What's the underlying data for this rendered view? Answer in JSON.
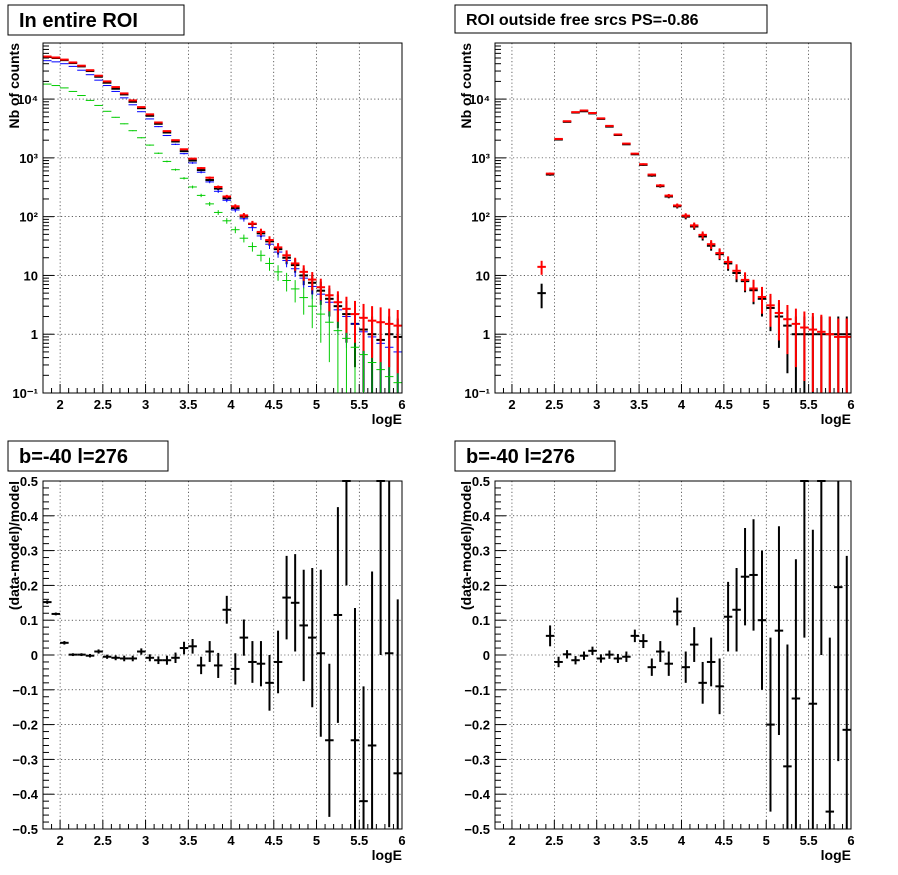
{
  "chart_data": [
    {
      "type": "scatter",
      "panel": "top-left",
      "title": "In entire ROI",
      "xlabel": "logE",
      "ylabel": "Nb of counts",
      "xlim": [
        1.8,
        6.0
      ],
      "ylim": [
        0.1,
        90000
      ],
      "log_y": true,
      "grid": true,
      "bin_width": 0.1,
      "x_ticks": [
        "2",
        "2.5",
        "3",
        "3.5",
        "4",
        "4.5",
        "5",
        "5.5",
        "6"
      ],
      "y_ticks": [
        "10⁻¹",
        "1",
        "10",
        "10²",
        "10³",
        "10⁴"
      ],
      "series": [
        {
          "color": "#000000",
          "x": [
            1.85,
            1.95,
            2.05,
            2.15,
            2.25,
            2.35,
            2.45,
            2.55,
            2.65,
            2.75,
            2.85,
            2.95,
            3.05,
            3.15,
            3.25,
            3.35,
            3.45,
            3.55,
            3.65,
            3.75,
            3.85,
            3.95,
            4.05,
            4.15,
            4.25,
            4.35,
            4.45,
            4.55,
            4.65,
            4.75,
            4.85,
            4.95,
            5.05,
            5.15,
            5.25,
            5.35,
            5.45,
            5.55,
            5.65,
            5.75,
            5.85,
            5.95
          ],
          "y": [
            52000,
            50000,
            46000,
            41000,
            36000,
            30000,
            24000,
            19000,
            15000,
            12000,
            9000,
            7000,
            5200,
            3800,
            2700,
            1900,
            1300,
            900,
            620,
            420,
            300,
            205,
            140,
            100,
            75,
            52,
            38,
            28,
            20,
            15,
            10,
            7.5,
            5.5,
            4,
            3,
            2.2,
            1.5,
            1.2,
            1.0,
            0.8,
            1.0,
            0.9
          ]
        },
        {
          "color": "#0000ff",
          "x": [
            1.85,
            1.95,
            2.05,
            2.15,
            2.25,
            2.35,
            2.45,
            2.55,
            2.65,
            2.75,
            2.85,
            2.95,
            3.05,
            3.15,
            3.25,
            3.35,
            3.45,
            3.55,
            3.65,
            3.75,
            3.85,
            3.95,
            4.05,
            4.15,
            4.25,
            4.35,
            4.45,
            4.55,
            4.65,
            4.75,
            4.85,
            4.95,
            5.05,
            5.15,
            5.25,
            5.35,
            5.45,
            5.55,
            5.65,
            5.75,
            5.85,
            5.95
          ],
          "y": [
            45000,
            43000,
            40000,
            36000,
            31000,
            26000,
            21000,
            17000,
            13500,
            10500,
            8000,
            6100,
            4600,
            3400,
            2400,
            1700,
            1180,
            820,
            570,
            390,
            270,
            190,
            130,
            92,
            65,
            47,
            34,
            25,
            18,
            13,
            9,
            6.5,
            4.8,
            3.5,
            2.6,
            2.0,
            1.5,
            1.1,
            0.9,
            0.7,
            0.6,
            0.5
          ]
        },
        {
          "color": "#00cc00",
          "x": [
            1.85,
            1.95,
            2.05,
            2.15,
            2.25,
            2.35,
            2.45,
            2.55,
            2.65,
            2.75,
            2.85,
            2.95,
            3.05,
            3.15,
            3.25,
            3.35,
            3.45,
            3.55,
            3.65,
            3.75,
            3.85,
            3.95,
            4.05,
            4.15,
            4.25,
            4.35,
            4.45,
            4.55,
            4.65,
            4.75,
            4.85,
            4.95,
            5.05,
            5.15,
            5.25,
            5.35,
            5.45,
            5.55,
            5.65,
            5.75,
            5.85,
            5.95
          ],
          "y": [
            18000,
            17000,
            15500,
            13500,
            11500,
            9500,
            7800,
            6200,
            4900,
            3800,
            2900,
            2200,
            1650,
            1200,
            870,
            630,
            450,
            320,
            230,
            165,
            118,
            85,
            60,
            43,
            31,
            22,
            16,
            11.5,
            8.2,
            5.9,
            4.2,
            3.0,
            2.2,
            1.6,
            1.15,
            0.85,
            0.6,
            0.45,
            0.33,
            0.25,
            0.19,
            0.15
          ]
        },
        {
          "color": "#ff0000",
          "x": [
            1.85,
            1.95,
            2.05,
            2.15,
            2.25,
            2.35,
            2.45,
            2.55,
            2.65,
            2.75,
            2.85,
            2.95,
            3.05,
            3.15,
            3.25,
            3.35,
            3.45,
            3.55,
            3.65,
            3.75,
            3.85,
            3.95,
            4.05,
            4.15,
            4.25,
            4.35,
            4.45,
            4.55,
            4.65,
            4.75,
            4.85,
            4.95,
            5.05,
            5.15,
            5.25,
            5.35,
            5.45,
            5.55,
            5.65,
            5.75,
            5.85,
            5.95
          ],
          "y": [
            53000,
            51000,
            47000,
            42000,
            37000,
            31000,
            25000,
            20000,
            16000,
            12500,
            9500,
            7300,
            5500,
            4000,
            2850,
            2000,
            1400,
            970,
            670,
            460,
            320,
            220,
            150,
            105,
            76,
            55,
            40,
            30,
            22,
            16,
            11.5,
            8.5,
            6.3,
            4.6,
            3.5,
            2.7,
            2.2,
            1.9,
            1.7,
            1.6,
            1.5,
            1.4
          ]
        }
      ]
    },
    {
      "type": "scatter",
      "panel": "top-right",
      "title": "ROI outside free srcs PS=-0.86",
      "xlabel": "logE",
      "ylabel": "Nb of counts",
      "xlim": [
        1.8,
        6.0
      ],
      "ylim": [
        0.1,
        90000
      ],
      "log_y": true,
      "grid": true,
      "bin_width": 0.1,
      "x_ticks": [
        "2",
        "2.5",
        "3",
        "3.5",
        "4",
        "4.5",
        "5",
        "5.5",
        "6"
      ],
      "y_ticks": [
        "10⁻¹",
        "1",
        "10",
        "10²",
        "10³",
        "10⁴"
      ],
      "series": [
        {
          "color": "#000000",
          "x": [
            2.35,
            2.45,
            2.55,
            2.65,
            2.75,
            2.85,
            2.95,
            3.05,
            3.15,
            3.25,
            3.35,
            3.45,
            3.55,
            3.65,
            3.75,
            3.85,
            3.95,
            4.05,
            4.15,
            4.25,
            4.35,
            4.45,
            4.55,
            4.65,
            4.75,
            4.85,
            4.95,
            5.05,
            5.15,
            5.25,
            5.35,
            5.45,
            5.55,
            5.65,
            5.75,
            5.85,
            5.95
          ],
          "y": [
            5,
            520,
            2050,
            4100,
            5900,
            6200,
            5700,
            4600,
            3400,
            2450,
            1700,
            1150,
            760,
            500,
            330,
            220,
            150,
            100,
            68,
            46,
            32,
            23,
            16,
            11,
            8,
            5.6,
            4,
            2.8,
            2,
            1.4,
            1,
            1,
            1,
            1,
            1,
            1,
            1
          ]
        },
        {
          "color": "#ff0000",
          "x": [
            2.35,
            2.45,
            2.55,
            2.65,
            2.75,
            2.85,
            2.95,
            3.05,
            3.15,
            3.25,
            3.35,
            3.45,
            3.55,
            3.65,
            3.75,
            3.85,
            3.95,
            4.05,
            4.15,
            4.25,
            4.35,
            4.45,
            4.55,
            4.65,
            4.75,
            4.85,
            4.95,
            5.05,
            5.15,
            5.25,
            5.35,
            5.45,
            5.55,
            5.65,
            5.75,
            5.85,
            5.95
          ],
          "y": [
            14,
            540,
            2100,
            4200,
            6000,
            6400,
            5800,
            4700,
            3500,
            2500,
            1750,
            1180,
            780,
            520,
            340,
            228,
            155,
            104,
            71,
            49,
            34,
            24,
            17,
            12,
            8.4,
            6,
            4.3,
            3.1,
            2.3,
            1.8,
            1.5,
            1.3,
            1.2,
            1.1,
            1.0,
            0.9,
            0.9
          ]
        }
      ]
    },
    {
      "type": "scatter",
      "panel": "bottom-left",
      "title": "b=-40 l=276",
      "xlabel": "logE",
      "ylabel": "(data-model)/model",
      "xlim": [
        1.8,
        6.0
      ],
      "ylim": [
        -0.5,
        0.5
      ],
      "grid": true,
      "bin_width": 0.1,
      "x_ticks": [
        "2",
        "2.5",
        "3",
        "3.5",
        "4",
        "4.5",
        "5",
        "5.5",
        "6"
      ],
      "y_ticks": [
        "−0.5",
        "−0.4",
        "−0.3",
        "−0.2",
        "−0.1",
        "0",
        "0.1",
        "0.2",
        "0.3",
        "0.4",
        "0.5"
      ],
      "series": [
        {
          "color": "#000000",
          "x": [
            1.85,
            1.95,
            2.05,
            2.15,
            2.25,
            2.35,
            2.45,
            2.55,
            2.65,
            2.75,
            2.85,
            2.95,
            3.05,
            3.15,
            3.25,
            3.35,
            3.45,
            3.55,
            3.65,
            3.75,
            3.85,
            3.95,
            4.05,
            4.15,
            4.25,
            4.35,
            4.45,
            4.55,
            4.65,
            4.75,
            4.85,
            4.95,
            5.05,
            5.15,
            5.25,
            5.35,
            5.45,
            5.55,
            5.65,
            5.75,
            5.85,
            5.95
          ],
          "y": [
            0.152,
            0.118,
            0.035,
            0.001,
            0.001,
            -0.002,
            0.01,
            -0.005,
            -0.008,
            -0.01,
            -0.01,
            0.01,
            -0.008,
            -0.015,
            -0.015,
            -0.008,
            0.02,
            0.025,
            -0.03,
            0.01,
            -0.03,
            0.13,
            -0.04,
            0.05,
            -0.02,
            -0.025,
            -0.08,
            -0.02,
            0.165,
            0.15,
            0.085,
            0.05,
            0.005,
            -0.245,
            0.115,
            0.5,
            -0.245,
            -0.42,
            -0.26,
            0.5,
            0.005,
            -0.34
          ],
          "err": [
            0.005,
            0.004,
            0.005,
            0.004,
            0.004,
            0.005,
            0.006,
            0.006,
            0.007,
            0.008,
            0.008,
            0.009,
            0.01,
            0.011,
            0.013,
            0.015,
            0.018,
            0.021,
            0.025,
            0.03,
            0.036,
            0.04,
            0.045,
            0.052,
            0.06,
            0.065,
            0.08,
            0.09,
            0.12,
            0.14,
            0.16,
            0.2,
            0.24,
            0.22,
            0.31,
            0.3,
            0.38,
            0.33,
            0.5,
            0.5,
            0.5,
            0.5
          ]
        }
      ]
    },
    {
      "type": "scatter",
      "panel": "bottom-right",
      "title": "b=-40 l=276",
      "xlabel": "logE",
      "ylabel": "(data-model)/model",
      "xlim": [
        1.8,
        6.0
      ],
      "ylim": [
        -0.5,
        0.5
      ],
      "grid": true,
      "bin_width": 0.1,
      "x_ticks": [
        "2",
        "2.5",
        "3",
        "3.5",
        "4",
        "4.5",
        "5",
        "5.5",
        "6"
      ],
      "y_ticks": [
        "−0.5",
        "−0.4",
        "−0.3",
        "−0.2",
        "−0.1",
        "0",
        "0.1",
        "0.2",
        "0.3",
        "0.4",
        "0.5"
      ],
      "series": [
        {
          "color": "#000000",
          "x": [
            2.45,
            2.55,
            2.65,
            2.75,
            2.85,
            2.95,
            3.05,
            3.15,
            3.25,
            3.35,
            3.45,
            3.55,
            3.65,
            3.75,
            3.85,
            3.95,
            4.05,
            4.15,
            4.25,
            4.35,
            4.45,
            4.55,
            4.65,
            4.75,
            4.85,
            4.95,
            5.05,
            5.15,
            5.25,
            5.35,
            5.45,
            5.55,
            5.65,
            5.75,
            5.85,
            5.95
          ],
          "y": [
            0.055,
            -0.02,
            0.002,
            -0.015,
            -0.002,
            0.012,
            -0.01,
            0.001,
            -0.01,
            -0.005,
            0.055,
            0.04,
            -0.035,
            0.01,
            -0.025,
            0.125,
            -0.035,
            0.03,
            -0.08,
            -0.02,
            -0.09,
            0.11,
            0.13,
            0.225,
            0.23,
            0.1,
            -0.2,
            0.07,
            -0.32,
            -0.125,
            0.5,
            -0.14,
            0.5,
            -0.45,
            0.195,
            -0.215
          ],
          "err": [
            0.03,
            0.015,
            0.012,
            0.012,
            0.012,
            0.012,
            0.012,
            0.012,
            0.013,
            0.015,
            0.018,
            0.02,
            0.025,
            0.03,
            0.035,
            0.04,
            0.045,
            0.05,
            0.06,
            0.07,
            0.08,
            0.1,
            0.12,
            0.14,
            0.16,
            0.2,
            0.25,
            0.3,
            0.35,
            0.4,
            0.45,
            0.5,
            0.5,
            0.5,
            0.5,
            0.5
          ]
        }
      ]
    }
  ]
}
